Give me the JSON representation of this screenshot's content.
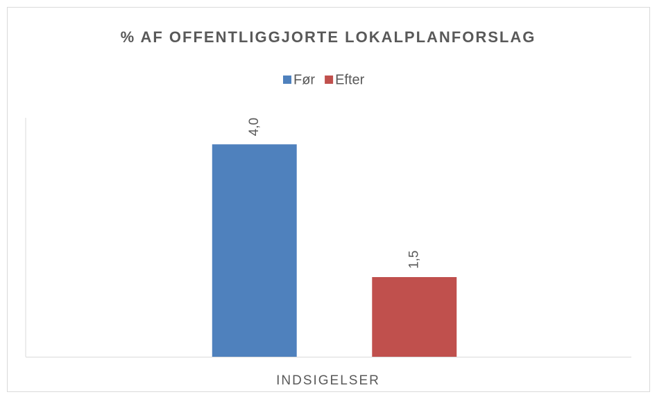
{
  "chart_data": {
    "type": "bar",
    "title": "% AF OFFENTLIGGJORTE LOKALPLANFORSLAG",
    "categories": [
      "INDSIGELSER"
    ],
    "series": [
      {
        "name": "Før",
        "color": "#4f81bd",
        "values": [
          4.0
        ],
        "value_labels": [
          "4,0"
        ]
      },
      {
        "name": "Efter",
        "color": "#c0504d",
        "values": [
          1.5
        ],
        "value_labels": [
          "1,5"
        ]
      }
    ],
    "ylim": [
      0,
      4.5
    ],
    "legend": "top"
  }
}
